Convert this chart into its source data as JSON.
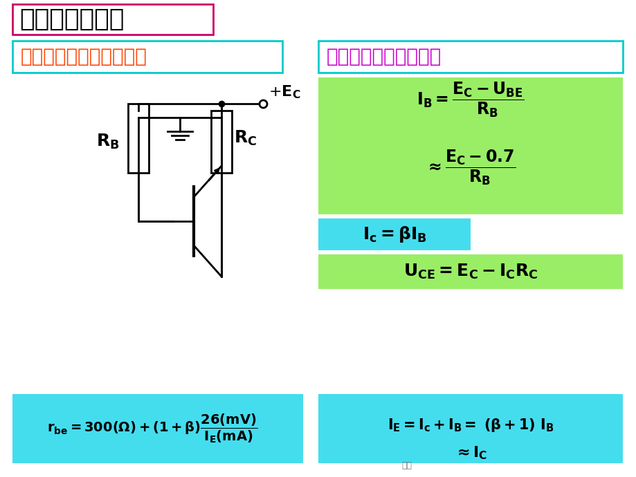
{
  "bg_color": "#ffffff",
  "title_text": "上次课内容回顾",
  "title_box_color": "#ffffff",
  "title_border_color": "#cc0066",
  "title_fontsize": 26,
  "left_label_text": "电容开路，画出直流通道",
  "left_label_color": "#ff4400",
  "left_label_bg": "#ffffff",
  "left_label_border": "#00cccc",
  "right_label_text": "用估算法求静态工作点",
  "right_label_color": "#cc00cc",
  "right_label_bg": "#ffffff",
  "right_label_border": "#00cccc",
  "green_box_color": "#99ee66",
  "cyan_box_color": "#44ddee",
  "formula1_line1": "$\\mathbf{I_B = \\dfrac{E_C - U_{BE}}{R_B}}$",
  "formula1_line2": "$\\mathbf{\\approx \\dfrac{E_C - 0.7}{R_B}}$",
  "formula2": "$\\mathbf{I_c= \\beta I_B}$",
  "formula3": "$\\mathbf{U_{CE} = E_C - I_C R_C}$",
  "formula4_line1": "$\\mathbf{I_E= I_c + I_B = \\ (\\beta+1)\\ I_B}$",
  "formula4_line2": "$\\mathbf{\\approx I_C}$",
  "formula5": "$\\mathbf{r_{be} = 300(\\Omega) + (1+\\beta)\\dfrac{26(mV)}{I_E(mA)}}$"
}
